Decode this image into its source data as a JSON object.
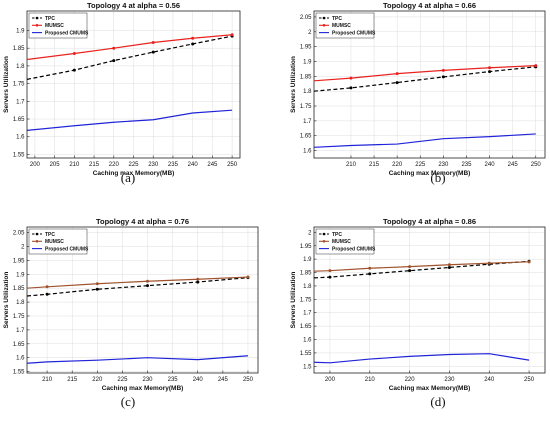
{
  "chart_data": [
    {
      "type": "line",
      "caption": "(a)",
      "title": "Topology 4 at alpha = 0.56",
      "xlabel": "Caching max Memory(MB)",
      "ylabel": "Servers Utilization",
      "xlim": [
        198,
        252
      ],
      "ylim": [
        1.54,
        1.955
      ],
      "xticks": [
        200,
        205,
        210,
        215,
        220,
        225,
        230,
        235,
        240,
        245,
        250
      ],
      "yticks": [
        1.55,
        1.6,
        1.65,
        1.7,
        1.75,
        1.8,
        1.85,
        1.9
      ],
      "grid": true,
      "legend": "top-left",
      "x": [
        198,
        210,
        220,
        230,
        240,
        250
      ],
      "series": [
        {
          "name": "TPC",
          "values": [
            1.762,
            1.788,
            1.815,
            1.839,
            1.862,
            1.884
          ],
          "color": "#000000",
          "style": "dashed",
          "marker": "dot"
        },
        {
          "name": "MUMSC",
          "values": [
            1.818,
            1.835,
            1.85,
            1.866,
            1.878,
            1.888
          ],
          "color": "#e8231f",
          "style": "solid",
          "marker": "dot"
        },
        {
          "name": "Proposed CMUMS",
          "values": [
            1.618,
            1.631,
            1.641,
            1.648,
            1.667,
            1.675
          ],
          "color": "#1f24d8",
          "style": "solid",
          "marker": "none"
        }
      ]
    },
    {
      "type": "line",
      "caption": "(b)",
      "title": "Topology 4 at alpha = 0.66",
      "xlabel": "Caching max Memory(MB)",
      "ylabel": "Servers Utilization",
      "xlim": [
        202,
        252
      ],
      "ylim": [
        1.575,
        2.07
      ],
      "xticks": [
        210,
        215,
        220,
        225,
        230,
        235,
        240,
        245,
        250
      ],
      "yticks": [
        1.6,
        1.65,
        1.7,
        1.75,
        1.8,
        1.85,
        1.9,
        1.95,
        2,
        2.05
      ],
      "grid": true,
      "legend": "top-left",
      "x": [
        202,
        210,
        220,
        230,
        240,
        250
      ],
      "series": [
        {
          "name": "TPC",
          "values": [
            1.8,
            1.811,
            1.829,
            1.848,
            1.866,
            1.882
          ],
          "color": "#000000",
          "style": "dashed",
          "marker": "dot"
        },
        {
          "name": "MUMSC",
          "values": [
            1.835,
            1.844,
            1.859,
            1.87,
            1.879,
            1.886
          ],
          "color": "#e8231f",
          "style": "solid",
          "marker": "dot"
        },
        {
          "name": "Proposed CMUMS",
          "values": [
            1.611,
            1.617,
            1.622,
            1.64,
            1.647,
            1.656
          ],
          "color": "#1f24d8",
          "style": "solid",
          "marker": "none"
        }
      ]
    },
    {
      "type": "line",
      "caption": "(c)",
      "title": "Topology 4 at alpha = 0.76",
      "xlabel": "Caching max Memory(MB)",
      "ylabel": "Servers Utilization",
      "xlim": [
        206,
        252
      ],
      "ylim": [
        1.545,
        2.07
      ],
      "xticks": [
        210,
        215,
        220,
        225,
        230,
        235,
        240,
        245,
        250
      ],
      "yticks": [
        1.55,
        1.6,
        1.65,
        1.7,
        1.75,
        1.8,
        1.85,
        1.9,
        1.95,
        2,
        2.05
      ],
      "grid": true,
      "legend": "top-left",
      "x": [
        206,
        210,
        220,
        230,
        240,
        250
      ],
      "series": [
        {
          "name": "TPC",
          "values": [
            1.822,
            1.828,
            1.846,
            1.859,
            1.872,
            1.888
          ],
          "color": "#000000",
          "style": "dashed",
          "marker": "dot"
        },
        {
          "name": "MUMSC",
          "values": [
            1.85,
            1.855,
            1.866,
            1.875,
            1.882,
            1.89
          ],
          "color": "#a0522d",
          "style": "solid",
          "marker": "dot"
        },
        {
          "name": "Proposed CMUMS",
          "values": [
            1.58,
            1.585,
            1.591,
            1.6,
            1.593,
            1.607
          ],
          "color": "#1f24d8",
          "style": "solid",
          "marker": "none"
        }
      ]
    },
    {
      "type": "line",
      "caption": "(d)",
      "title": "Topology 4 at alpha = 0.86",
      "xlabel": "Caching max Memory(MB)",
      "ylabel": "Servers Utilization",
      "xlim": [
        196,
        254
      ],
      "ylim": [
        1.475,
        2.02
      ],
      "xticks": [
        200,
        210,
        220,
        230,
        240,
        250
      ],
      "yticks": [
        1.5,
        1.55,
        1.6,
        1.65,
        1.7,
        1.75,
        1.8,
        1.85,
        1.9,
        1.95,
        2
      ],
      "grid": true,
      "legend": "top-left",
      "x": [
        196,
        200,
        210,
        220,
        230,
        240,
        250
      ],
      "series": [
        {
          "name": "TPC",
          "values": [
            1.83,
            1.833,
            1.845,
            1.857,
            1.869,
            1.881,
            1.892
          ],
          "color": "#000000",
          "style": "dashed",
          "marker": "dot"
        },
        {
          "name": "MUMSC",
          "values": [
            1.855,
            1.857,
            1.866,
            1.872,
            1.879,
            1.885,
            1.89
          ],
          "color": "#a0522d",
          "style": "solid",
          "marker": "dot"
        },
        {
          "name": "Proposed CMUMS",
          "values": [
            1.515,
            1.513,
            1.527,
            1.537,
            1.544,
            1.547,
            1.523
          ],
          "color": "#1f24d8",
          "style": "solid",
          "marker": "none"
        }
      ]
    }
  ]
}
